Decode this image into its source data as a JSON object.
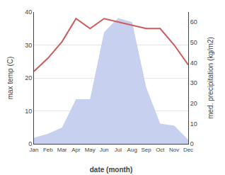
{
  "chart_data": {
    "type": "line",
    "categories": [
      "Jan",
      "Feb",
      "Mar",
      "Apr",
      "May",
      "Jun",
      "Jul",
      "Aug",
      "Sep",
      "Oct",
      "Nov",
      "Dec"
    ],
    "series": [
      {
        "type": "area",
        "axis": "y2",
        "color": "#c8d0f0",
        "values": [
          3,
          5,
          8,
          22,
          22,
          55,
          62,
          60,
          28,
          10,
          9,
          2
        ]
      },
      {
        "type": "line",
        "color": "#cd5c5c",
        "values": [
          22,
          26,
          31,
          38,
          35,
          38,
          37,
          36,
          35,
          35,
          30,
          24
        ]
      }
    ],
    "xlabel": "date (month)",
    "ylabel": "max temp (C)",
    "y2label": "med. precipitation (kg/m2)",
    "ylim": [
      0,
      40
    ],
    "yticks": [
      0,
      10,
      20,
      30,
      40
    ],
    "y2lim": [
      0,
      65
    ],
    "y2ticks": [
      0,
      10,
      20,
      30,
      40,
      50,
      60
    ],
    "grid": true
  }
}
